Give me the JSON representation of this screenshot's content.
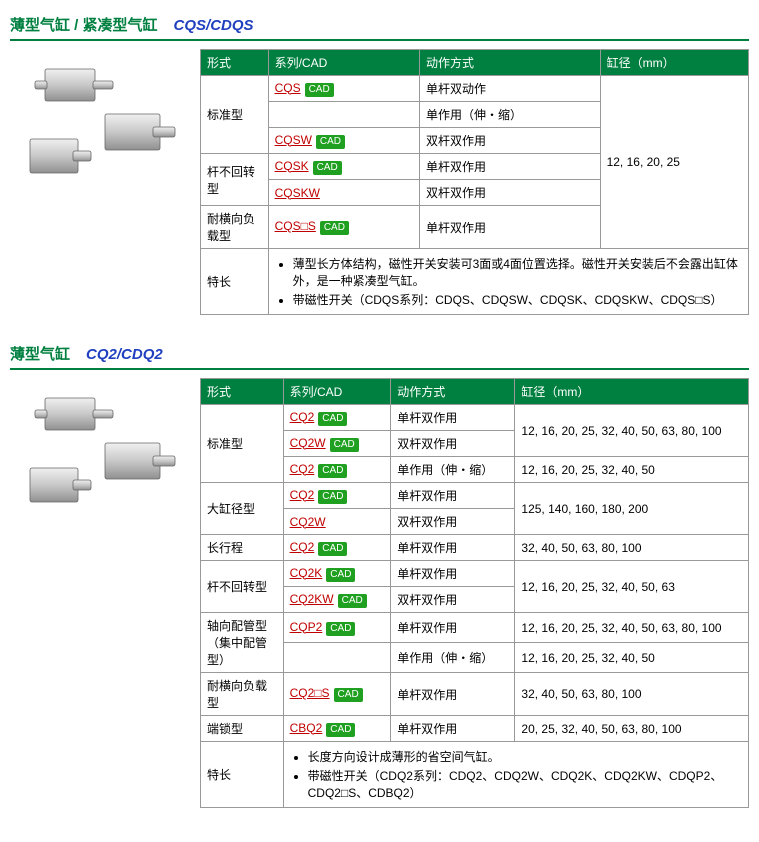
{
  "sections": [
    {
      "title_cn": "薄型气缸 / 紧凑型气缸",
      "title_en": "CQS/CDQS",
      "headers": [
        "形式",
        "系列/CAD",
        "动作方式",
        "缸径（mm）"
      ],
      "groups": [
        {
          "type_label": "标准型",
          "bore_text": "12, 16, 20, 25",
          "bore_rowspan": 5,
          "rows": [
            {
              "series": "CQS",
              "cad": true,
              "action": "单杆双动作"
            },
            {
              "series": "",
              "cad": false,
              "action": "单作用（伸・缩）"
            },
            {
              "series": "CQSW",
              "cad": true,
              "action": "双杆双作用"
            }
          ]
        },
        {
          "type_label": "杆不回转型",
          "rows": [
            {
              "series": "CQSK",
              "cad": true,
              "action": "单杆双作用"
            },
            {
              "series": "CQSKW",
              "cad": false,
              "action": "双杆双作用"
            }
          ]
        },
        {
          "type_label": "耐横向负载型",
          "rows": [
            {
              "series": "CQS□S",
              "cad": true,
              "action": "单杆双作用",
              "bore_text": ""
            }
          ]
        }
      ],
      "feature_label": "特长",
      "features": [
        "薄型长方体结构，磁性开关安装可3面或4面位置选择。磁性开关安装后不会露出缸体外，是一种紧凑型气缸。",
        "带磁性开关（CDQS系列：CDQS、CDQSW、CDQSK、CDQSKW、CDQS□S）"
      ]
    },
    {
      "title_cn": "薄型气缸",
      "title_en": "CQ2/CDQ2",
      "headers": [
        "形式",
        "系列/CAD",
        "动作方式",
        "缸径（mm）"
      ],
      "groups": [
        {
          "type_label": "标准型",
          "rows": [
            {
              "series": "CQ2",
              "cad": true,
              "action": "单杆双作用",
              "bore_text": "12, 16, 20, 25, 32, 40, 50, 63, 80, 100",
              "bore_rowspan": 2
            },
            {
              "series": "CQ2W",
              "cad": true,
              "action": "双杆双作用"
            },
            {
              "series": "CQ2",
              "cad": true,
              "action": "单作用（伸・缩）",
              "bore_text": "12, 16, 20, 25, 32, 40, 50"
            }
          ]
        },
        {
          "type_label": "大缸径型",
          "rows": [
            {
              "series": "CQ2",
              "cad": true,
              "action": "单杆双作用",
              "bore_text": "125, 140, 160, 180, 200",
              "bore_rowspan": 2
            },
            {
              "series": "CQ2W",
              "cad": false,
              "action": "双杆双作用"
            }
          ]
        },
        {
          "type_label": "长行程",
          "rows": [
            {
              "series": "CQ2",
              "cad": true,
              "action": "单杆双作用",
              "bore_text": "32, 40, 50, 63, 80, 100"
            }
          ]
        },
        {
          "type_label": "杆不回转型",
          "rows": [
            {
              "series": "CQ2K",
              "cad": true,
              "action": "单杆双作用",
              "bore_text": "12, 16, 20, 25, 32, 40, 50, 63",
              "bore_rowspan": 2
            },
            {
              "series": "CQ2KW",
              "cad": true,
              "action": "双杆双作用"
            }
          ]
        },
        {
          "type_label": "轴向配管型\n（集中配管型）",
          "rows": [
            {
              "series": "CQP2",
              "cad": true,
              "action": "单杆双作用",
              "bore_text": "12, 16, 20, 25, 32, 40, 50, 63, 80, 100"
            },
            {
              "series": "",
              "cad": false,
              "action": "单作用（伸・缩）",
              "bore_text": "12, 16, 20, 25, 32, 40, 50"
            }
          ]
        },
        {
          "type_label": "耐横向负载型",
          "rows": [
            {
              "series": "CQ2□S",
              "cad": true,
              "action": "单杆双作用",
              "bore_text": "32, 40, 50, 63, 80, 100"
            }
          ]
        },
        {
          "type_label": "端锁型",
          "rows": [
            {
              "series": "CBQ2",
              "cad": true,
              "action": "单杆双作用",
              "bore_text": "20, 25, 32, 40, 50, 63, 80, 100"
            }
          ]
        }
      ],
      "feature_label": "特长",
      "features": [
        "长度方向设计成薄形的省空间气缸。",
        "带磁性开关（CDQ2系列：CDQ2、CDQ2W、CDQ2K、CDQ2KW、CDQP2、CDQ2□S、CDBQ2）"
      ]
    }
  ],
  "cad_label": "CAD"
}
